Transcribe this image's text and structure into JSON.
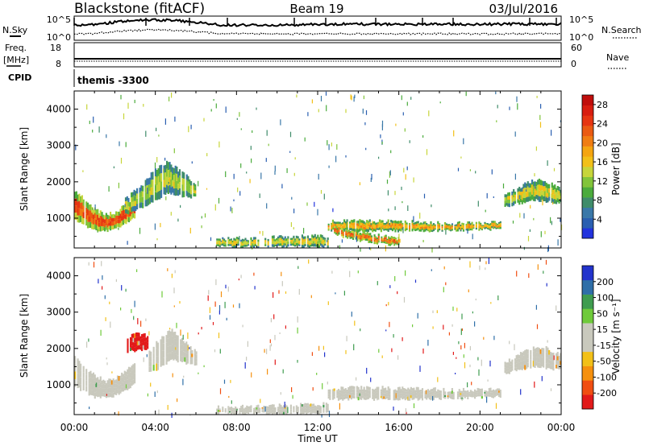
{
  "header": {
    "station": "Blackstone (fitACF)",
    "beam": "Beam 19",
    "date": "03/Jul/2016"
  },
  "status_panel": {
    "nsky_label": "N.Sky",
    "nsearch_label": "N.Search",
    "freq_label": "Freq.",
    "freq_unit": "[MHz]",
    "nave_label": "Nave",
    "cpid_label": "CPID",
    "cpid_value": "themis -3300",
    "count_ticks_left": [
      "10^5",
      "10^0"
    ],
    "count_ticks_right": [
      "10^5",
      "10^0"
    ],
    "freq_ticks_left": [
      "18",
      "8"
    ],
    "nave_ticks_right": [
      "60",
      "0"
    ]
  },
  "chart_data": [
    {
      "type": "heatmap",
      "name": "power",
      "ylabel": "Slant Range [km]",
      "xlabel": "Time UT",
      "xlim": [
        0,
        24
      ],
      "ylim": [
        180,
        4500
      ],
      "x_tick_labels": [
        "00:00",
        "04:00",
        "08:00",
        "12:00",
        "16:00",
        "20:00",
        "00:00"
      ],
      "y_ticks": [
        1000,
        2000,
        3000,
        4000
      ],
      "colorbar": {
        "label": "Power [dB]",
        "ticks": [
          4,
          8,
          12,
          16,
          20,
          24,
          28
        ],
        "range": [
          0,
          30
        ],
        "colors": [
          "#2233dd",
          "#2a5fb0",
          "#3a78a8",
          "#3f8c6a",
          "#4bab3c",
          "#82c43a",
          "#c7d53a",
          "#f2c018",
          "#f5a510",
          "#f07d12",
          "#ea5a12",
          "#e63512",
          "#d81d10",
          "#c00e0c"
        ]
      },
      "regions": [
        {
          "t0": 0.0,
          "t1": 3.0,
          "r_upper": [
            1750,
            1500,
            1250,
            1100,
            1150,
            1400,
            1600
          ],
          "r_lower": [
            950,
            800,
            650,
            650,
            700,
            850,
            1050
          ],
          "level": 28
        },
        {
          "t0": 2.5,
          "t1": 6.0,
          "r_upper": [
            1550,
            1850,
            2300,
            2550,
            2250,
            1900
          ],
          "r_lower": [
            1100,
            1250,
            1450,
            1700,
            1600,
            1550
          ],
          "level": 16
        },
        {
          "t0": 7.0,
          "t1": 12.5,
          "r_upper": [
            420,
            440,
            460,
            480,
            500,
            520
          ],
          "r_lower": [
            210,
            210,
            210,
            210,
            210,
            210
          ],
          "level": 18
        },
        {
          "t0": 12.5,
          "t1": 21.0,
          "r_upper": [
            900,
            920,
            920,
            900,
            880,
            860,
            860,
            880
          ],
          "r_lower": [
            650,
            650,
            650,
            650,
            650,
            660,
            680,
            700
          ],
          "level": 22
        },
        {
          "t0": 12.8,
          "t1": 16.0,
          "r_upper": [
            800,
            650,
            520,
            420
          ],
          "r_lower": [
            550,
            400,
            300,
            250
          ],
          "level": 26
        },
        {
          "t0": 21.2,
          "t1": 24.0,
          "r_upper": [
            1600,
            1850,
            2050,
            2000,
            1800
          ],
          "r_lower": [
            1300,
            1400,
            1500,
            1450,
            1400
          ],
          "level": 18
        }
      ]
    },
    {
      "type": "heatmap",
      "name": "velocity",
      "ylabel": "Slant Range [km]",
      "xlabel": "Time UT",
      "xlim": [
        0,
        24
      ],
      "ylim": [
        180,
        4500
      ],
      "x_tick_labels": [
        "00:00",
        "04:00",
        "08:00",
        "12:00",
        "16:00",
        "20:00",
        "00:00"
      ],
      "y_ticks": [
        1000,
        2000,
        3000,
        4000
      ],
      "colorbar": {
        "label": "Velocity [m s⁻¹]",
        "ticks": [
          "200",
          "100",
          "50",
          "15",
          "-15",
          "-50",
          "-100",
          "-200"
        ],
        "range": [
          -250,
          250
        ],
        "colors": [
          "#e21a1a",
          "#f04e12",
          "#f5900e",
          "#f2c018",
          "#c9c9bd",
          "#c9c9bd",
          "#6fca3a",
          "#3f9c4f",
          "#2f6fa8",
          "#2233cc"
        ]
      },
      "regions": [
        {
          "t0": 0.0,
          "t1": 3.0,
          "r_upper": [
            1750,
            1500,
            1250,
            1100,
            1150,
            1400,
            1600
          ],
          "r_lower": [
            950,
            800,
            650,
            650,
            700,
            850,
            1050
          ],
          "level": -5
        },
        {
          "t0": 2.6,
          "t1": 3.6,
          "r_upper": [
            2300,
            2400,
            2350
          ],
          "r_lower": [
            1900,
            1950,
            1950
          ],
          "level": -220
        },
        {
          "t0": 3.6,
          "t1": 6.0,
          "r_upper": [
            1850,
            2300,
            2500,
            2200,
            1900
          ],
          "r_lower": [
            1300,
            1450,
            1700,
            1600,
            1550
          ],
          "level": 0
        },
        {
          "t0": 7.0,
          "t1": 12.5,
          "r_upper": [
            380,
            400,
            420,
            440,
            460,
            480
          ],
          "r_lower": [
            210,
            210,
            210,
            210,
            210,
            210
          ],
          "level": 20
        },
        {
          "t0": 12.5,
          "t1": 21.0,
          "r_upper": [
            900,
            920,
            920,
            900,
            880,
            860,
            860,
            880
          ],
          "r_lower": [
            600,
            600,
            600,
            600,
            600,
            620,
            650,
            680
          ],
          "level": 0
        },
        {
          "t0": 21.2,
          "t1": 24.0,
          "r_upper": [
            1600,
            1850,
            2050,
            2000,
            1800
          ],
          "r_lower": [
            1300,
            1400,
            1500,
            1450,
            1400
          ],
          "level": 0
        }
      ]
    }
  ]
}
